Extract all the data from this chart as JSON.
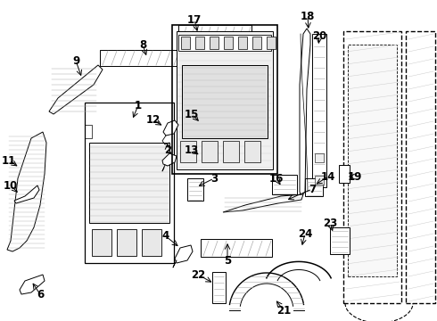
{
  "background_color": "#ffffff",
  "line_color": "#000000",
  "figsize": [
    4.9,
    3.6
  ],
  "dpi": 100,
  "xlim": [
    0,
    490
  ],
  "ylim": [
    0,
    360
  ]
}
